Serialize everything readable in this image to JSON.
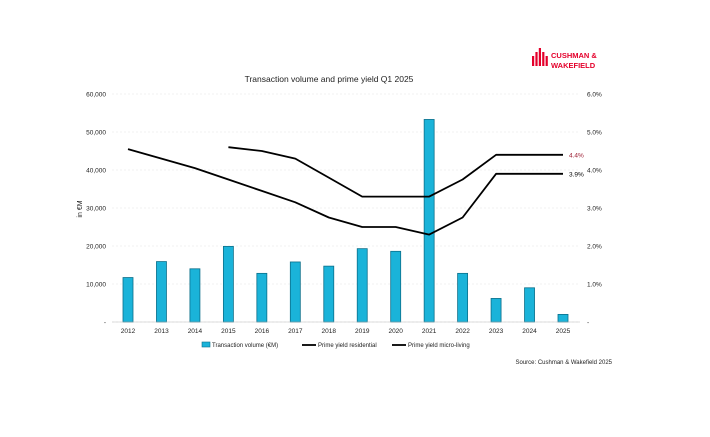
{
  "brand": {
    "logo_line1": "CUSHMAN &",
    "logo_line2": "WAKEFIELD",
    "logo_color": "#e4002b"
  },
  "source_note": "Source: Cushman & Wakefield 2025",
  "chart_data": {
    "type": "bar",
    "title": "Transaction volume and prime yield Q1 2025",
    "ylabel": "in €M",
    "y2label": "",
    "categories": [
      "2012",
      "2013",
      "2014",
      "2015",
      "2016",
      "2017",
      "2018",
      "2019",
      "2020",
      "2021",
      "2022",
      "2023",
      "2024",
      "2025"
    ],
    "ylim": [
      0,
      60000
    ],
    "yticks": [
      0,
      10000,
      20000,
      30000,
      40000,
      50000,
      60000
    ],
    "ytick_labels": [
      "-",
      "10,000",
      "20,000",
      "30,000",
      "40,000",
      "50,000",
      "60,000"
    ],
    "y2lim": [
      0,
      6.0
    ],
    "y2ticks": [
      0,
      1.0,
      2.0,
      3.0,
      4.0,
      5.0,
      6.0
    ],
    "y2tick_labels": [
      "-",
      "1.0%",
      "2.0%",
      "3.0%",
      "4.0%",
      "5.0%",
      "6.0%"
    ],
    "grid": true,
    "legend_position": "bottom",
    "series": [
      {
        "name": "Transaction volume (€M)",
        "kind": "bar",
        "axis": "left",
        "color": "#1ab3d9",
        "values": [
          11700,
          15900,
          14000,
          19900,
          12800,
          15800,
          14700,
          19300,
          18600,
          53300,
          12800,
          6200,
          9000,
          2000
        ]
      },
      {
        "name": "Prime yield residential",
        "kind": "line",
        "axis": "right",
        "color": "#000000",
        "values": [
          null,
          null,
          null,
          4.6,
          4.5,
          4.3,
          3.8,
          3.3,
          3.3,
          3.3,
          3.75,
          4.4,
          4.4,
          4.4
        ]
      },
      {
        "name": "Prime yield micro-living",
        "kind": "line",
        "axis": "right",
        "color": "#000000",
        "values": [
          4.55,
          4.3,
          4.05,
          3.75,
          3.45,
          3.15,
          2.75,
          2.5,
          2.5,
          2.3,
          2.75,
          3.9,
          3.9,
          3.9
        ]
      }
    ],
    "annotations": [
      {
        "text": "4.4%",
        "series": 1,
        "color": "#9b1b30"
      },
      {
        "text": "3.9%",
        "series": 2,
        "color": "#000000"
      }
    ]
  }
}
